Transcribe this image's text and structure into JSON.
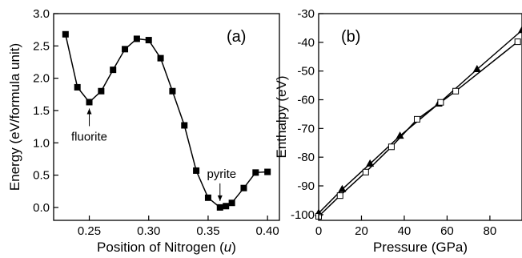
{
  "chart_data": [
    {
      "panel": "(a)",
      "type": "line",
      "xlabel": "Position of Nitrogen (",
      "xlabel_var": "u",
      "xlabel_end": ")",
      "ylabel": "Energy (eV/formula unit)",
      "xlim": [
        0.22,
        0.41
      ],
      "ylim": [
        -0.2,
        3.0
      ],
      "xticks": [
        0.25,
        0.3,
        0.35,
        0.4
      ],
      "xtick_labels": [
        "0.25",
        "0.30",
        "0.35",
        "0.40"
      ],
      "yticks": [
        0.0,
        0.5,
        1.0,
        1.5,
        2.0,
        2.5,
        3.0
      ],
      "ytick_labels": [
        "0.0",
        "0.5",
        "1.0",
        "1.5",
        "2.0",
        "2.5",
        "3.0"
      ],
      "series": [
        {
          "marker": "filled-square",
          "x": [
            0.23,
            0.24,
            0.25,
            0.26,
            0.27,
            0.28,
            0.29,
            0.3,
            0.31,
            0.32,
            0.33,
            0.34,
            0.35,
            0.36,
            0.365,
            0.37,
            0.38,
            0.39,
            0.4
          ],
          "y": [
            2.68,
            1.86,
            1.63,
            1.8,
            2.13,
            2.45,
            2.61,
            2.59,
            2.31,
            1.8,
            1.27,
            0.57,
            0.15,
            0.0,
            0.02,
            0.07,
            0.3,
            0.54,
            0.55
          ]
        }
      ],
      "annotations": [
        {
          "text": "fluorite",
          "x": 0.25,
          "y": 1.63
        },
        {
          "text": "pyrite",
          "x": 0.36,
          "y": 0.0
        }
      ]
    },
    {
      "panel": "(b)",
      "type": "line",
      "xlabel": "Pressure (GPa)",
      "ylabel": "Enthalpy (eV)",
      "xlim": [
        0,
        95
      ],
      "ylim": [
        -102,
        -30
      ],
      "xticks": [
        0,
        20,
        40,
        60,
        80
      ],
      "xtick_labels": [
        "0",
        "20",
        "40",
        "60",
        "80"
      ],
      "yticks": [
        -100,
        -90,
        -80,
        -70,
        -60,
        -50,
        -40,
        -30
      ],
      "ytick_labels": [
        "-100",
        "-90",
        "-80",
        "-70",
        "-60",
        "-50",
        "-40",
        "-30"
      ],
      "series": [
        {
          "marker": "filled-triangle",
          "x": [
            0,
            11,
            24,
            38,
            56,
            74,
            95
          ],
          "y": [
            -99.5,
            -91.2,
            -82.3,
            -72.6,
            -61.4,
            -49.4,
            -35.8
          ]
        },
        {
          "marker": "open-square",
          "x": [
            0,
            10,
            22,
            34,
            46,
            57,
            64,
            93
          ],
          "y": [
            -100.6,
            -93.4,
            -85.2,
            -76.4,
            -66.8,
            -60.9,
            -57.0,
            -39.8
          ]
        }
      ]
    }
  ]
}
